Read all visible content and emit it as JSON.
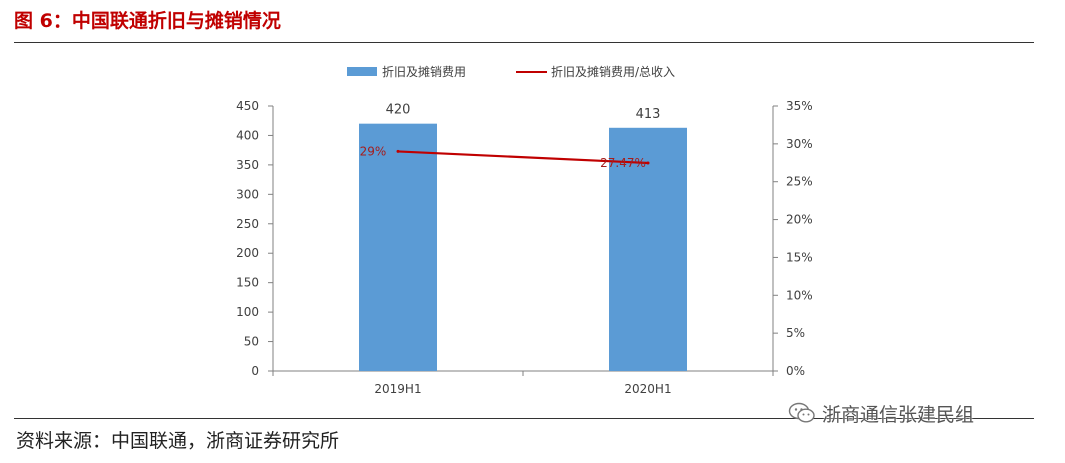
{
  "figure": {
    "title": "图 6：中国联通折旧与摊销情况",
    "source": "资料来源：中国联通，浙商证券研究所",
    "watermark": "浙商通信张建民组",
    "watermark_icon": "wechat-icon"
  },
  "chart_data": {
    "type": "bar",
    "categories": [
      "2019H1",
      "2020H1"
    ],
    "series": [
      {
        "name": "折旧及摊销费用",
        "kind": "bar",
        "axis": "left",
        "color": "#5b9bd5",
        "values": [
          420,
          413
        ],
        "labels": [
          "420",
          "413"
        ]
      },
      {
        "name": "折旧及摊销费用/总收入",
        "kind": "line",
        "axis": "right",
        "color": "#c00000",
        "values": [
          29,
          27.47
        ],
        "labels": [
          "29%",
          "27.47%"
        ]
      }
    ],
    "left_axis": {
      "min": 0,
      "max": 450,
      "ticks": [
        "0",
        "50",
        "100",
        "150",
        "200",
        "250",
        "300",
        "350",
        "400",
        "450"
      ]
    },
    "right_axis": {
      "min": 0,
      "max": 35,
      "ticks": [
        "0%",
        "5%",
        "10%",
        "15%",
        "20%",
        "25%",
        "30%",
        "35%"
      ]
    },
    "legend_position": "top-center",
    "grid": false
  }
}
